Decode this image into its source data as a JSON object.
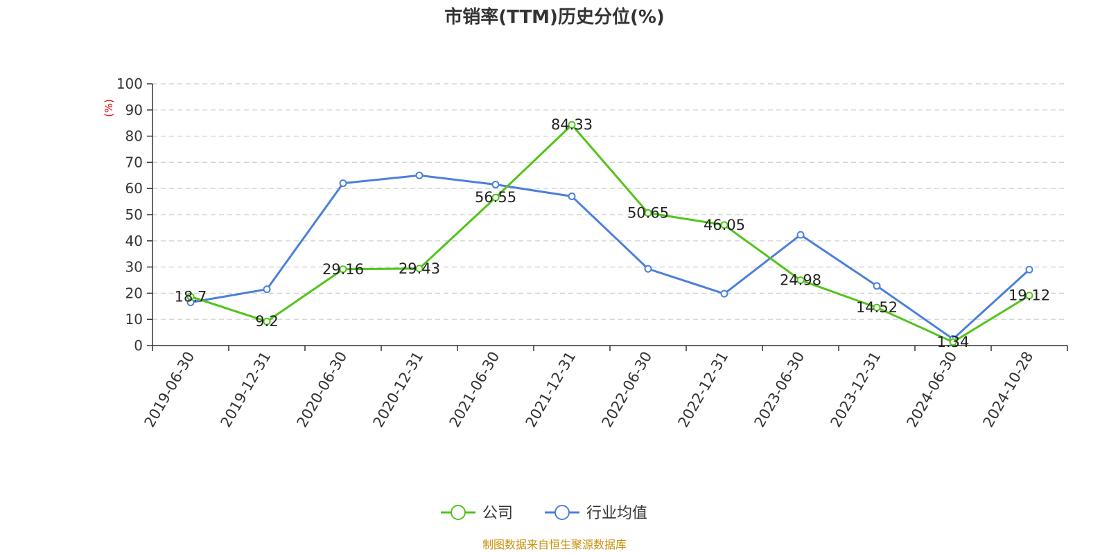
{
  "colors": {
    "company": "#52c41a",
    "industry": "#4a7fdc",
    "unit": "#e60000",
    "source": "#c8900a",
    "grid": "#cccccc",
    "axis": "#333333"
  },
  "chart_data": {
    "type": "line",
    "title": "市销率(TTM)历史分位(%)",
    "ylabel": "(%)",
    "ylim": [
      0,
      100
    ],
    "yticks": [
      0,
      10,
      20,
      30,
      40,
      50,
      60,
      70,
      80,
      90,
      100
    ],
    "grid": true,
    "legend_position": "bottom-center",
    "categories": [
      "2019-06-30",
      "2019-12-31",
      "2020-06-30",
      "2020-12-31",
      "2021-06-30",
      "2021-12-31",
      "2022-06-30",
      "2022-12-31",
      "2023-06-30",
      "2023-12-31",
      "2024-06-30",
      "2024-10-28"
    ],
    "series": [
      {
        "name": "公司",
        "color": "#52c41a",
        "values": [
          18.7,
          9.2,
          29.16,
          29.43,
          56.55,
          84.33,
          50.65,
          46.05,
          24.98,
          14.52,
          1.34,
          19.12
        ],
        "labels": [
          "18.7",
          "9.2",
          "29.16",
          "29.43",
          "56.55",
          "84.33",
          "50.65",
          "46.05",
          "24.98",
          "14.52",
          "1.34",
          "19.12"
        ]
      },
      {
        "name": "行业均值",
        "color": "#4a7fdc",
        "values": [
          16.5,
          21.5,
          62,
          65,
          61.5,
          57,
          29.3,
          19.8,
          42.3,
          22.8,
          2.5,
          29
        ]
      }
    ]
  },
  "footer": {
    "source": "制图数据来自恒生聚源数据库"
  }
}
